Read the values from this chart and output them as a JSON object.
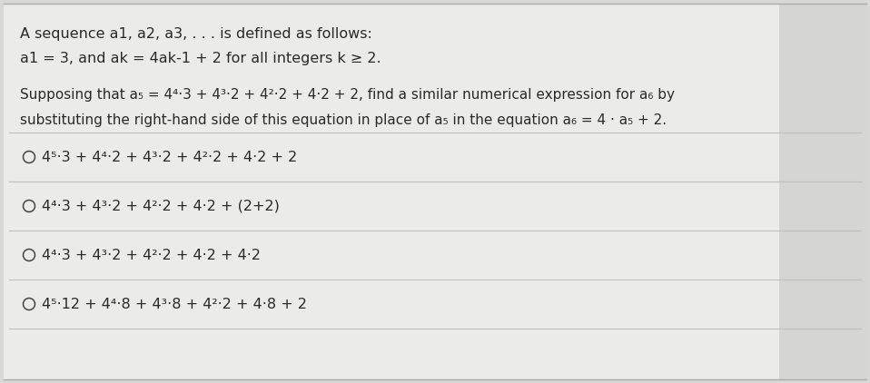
{
  "background_color": "#d8d8d6",
  "content_background": "#ebebea",
  "right_panel_color": "#d5d5d3",
  "text_color": "#2a2a2a",
  "divider_color": "#c0c0be",
  "title_lines": [
    "A sequence a1, a2, a3, . . . is defined as follows:",
    "a1 = 3, and ak = 4ak-1 + 2 for all integers k ≥ 2."
  ],
  "body_line1": "Supposing that a₅ = 4⁴·3 + 4³·2 + 4²·2 + 4·2 + 2, find a similar numerical expression for a₆ by",
  "body_line2": "substituting the right-hand side of this equation in place of a₅ in the equation a₆ = 4 · a₅ + 2.",
  "options": [
    "4⁵·3 + 4⁴·2 + 4³·2 + 4²·2 + 4·2 + 2",
    "4⁴·3 + 4³·2 + 4²·2 + 4·2 + (2+2)",
    "4⁴·3 + 4³·2 + 4²·2 + 4·2 + 4·2",
    "4⁵·12 + 4⁴·8 + 4³·8 + 4²·2 + 4·8 + 2"
  ],
  "font_size_title": 11.5,
  "font_size_body": 11.0,
  "font_size_options": 11.5,
  "fig_width": 9.58,
  "fig_height": 4.22,
  "dpi": 100
}
